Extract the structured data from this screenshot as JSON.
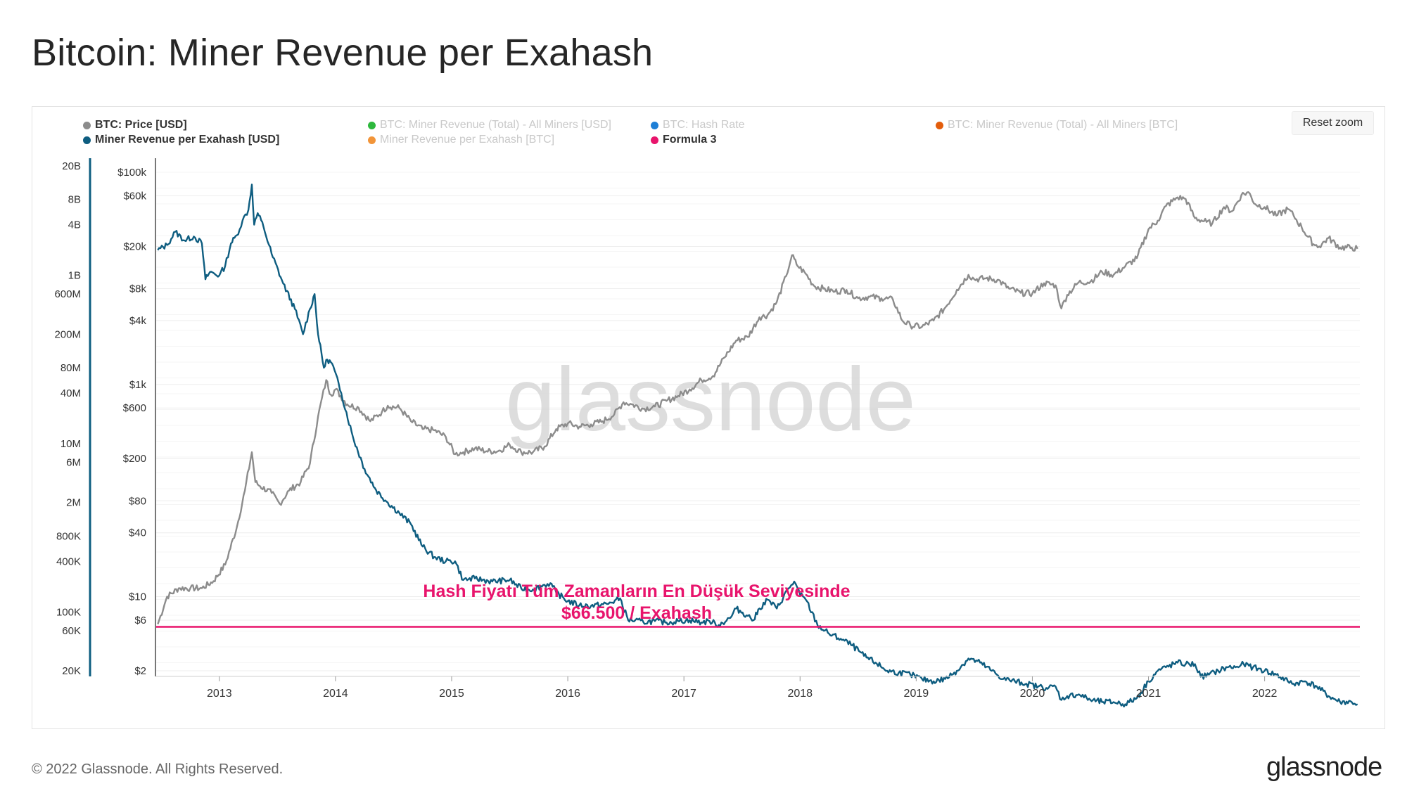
{
  "title": "Bitcoin: Miner Revenue per Exahash",
  "reset_zoom_label": "Reset zoom",
  "watermark": "glassnode",
  "legend": [
    {
      "label": "BTC: Price [USD]",
      "color": "#8c8c8c",
      "active": true
    },
    {
      "label": "BTC: Miner Revenue (Total) - All Miners [USD]",
      "color": "#2db83d",
      "active": false
    },
    {
      "label": "BTC: Hash Rate",
      "color": "#1e7fd6",
      "active": false
    },
    {
      "label": "BTC: Miner Revenue (Total) - All Miners [BTC]",
      "color": "#e35d0c",
      "active": false
    },
    {
      "label": "Miner Revenue per Exahash [USD]",
      "color": "#0e5d80",
      "active": true
    },
    {
      "label": "Miner Revenue per Exahash [BTC]",
      "color": "#f29539",
      "active": false
    },
    {
      "label": "Formula 3",
      "color": "#e8146c",
      "active": true
    }
  ],
  "annotation": {
    "line1": "Hash Fiyatı Tüm Zamanların En Düşük Seviyesinde",
    "line2": "$66.500 / Exahash",
    "color": "#e8146c"
  },
  "chart_data": {
    "type": "line",
    "title": "Bitcoin: Miner Revenue per Exahash",
    "x_ticks": [
      "2013",
      "2014",
      "2015",
      "2016",
      "2017",
      "2018",
      "2019",
      "2020",
      "2021",
      "2022"
    ],
    "x_range": [
      2012.45,
      2022.82
    ],
    "left_axis": {
      "scale": "log",
      "ticks": [
        "20B",
        "8B",
        "4B",
        "1B",
        "600M",
        "200M",
        "80M",
        "40M",
        "10M",
        "6M",
        "2M",
        "800K",
        "400K",
        "100K",
        "60K",
        "20K"
      ],
      "tick_values": [
        20000000000,
        8000000000,
        4000000000,
        1000000000,
        600000000,
        200000000,
        80000000,
        40000000,
        10000000,
        6000000,
        2000000,
        800000,
        400000,
        100000,
        60000,
        20000
      ],
      "color": "#0e5d80"
    },
    "price_axis": {
      "scale": "log",
      "ticks": [
        "$100k",
        "$60k",
        "$20k",
        "$8k",
        "$4k",
        "$1k",
        "$600",
        "$200",
        "$80",
        "$40",
        "$10",
        "$6",
        "$2"
      ],
      "tick_values": [
        100000,
        60000,
        20000,
        8000,
        4000,
        1000,
        600,
        200,
        80,
        40,
        10,
        6,
        2
      ],
      "range": [
        2,
        100000
      ]
    },
    "series": [
      {
        "name": "BTC: Price [USD]",
        "color": "#8c8c8c",
        "unit": "USD",
        "x": [
          2012.47,
          2012.55,
          2012.65,
          2012.75,
          2012.85,
          2012.95,
          2013.05,
          2013.15,
          2013.22,
          2013.28,
          2013.31,
          2013.35,
          2013.45,
          2013.52,
          2013.6,
          2013.7,
          2013.78,
          2013.85,
          2013.92,
          2013.96,
          2014.0,
          2014.1,
          2014.2,
          2014.3,
          2014.4,
          2014.45,
          2014.55,
          2014.65,
          2014.75,
          2014.85,
          2014.95,
          2015.03,
          2015.1,
          2015.2,
          2015.3,
          2015.4,
          2015.5,
          2015.6,
          2015.7,
          2015.8,
          2015.9,
          2016.0,
          2016.1,
          2016.2,
          2016.3,
          2016.4,
          2016.48,
          2016.55,
          2016.65,
          2016.75,
          2016.85,
          2016.95,
          2017.05,
          2017.15,
          2017.25,
          2017.35,
          2017.45,
          2017.55,
          2017.65,
          2017.72,
          2017.8,
          2017.88,
          2017.93,
          2017.97,
          2018.05,
          2018.12,
          2018.2,
          2018.3,
          2018.4,
          2018.5,
          2018.6,
          2018.7,
          2018.8,
          2018.88,
          2018.95,
          2019.05,
          2019.15,
          2019.25,
          2019.35,
          2019.45,
          2019.5,
          2019.6,
          2019.7,
          2019.8,
          2019.9,
          2020.0,
          2020.1,
          2020.2,
          2020.25,
          2020.3,
          2020.4,
          2020.5,
          2020.6,
          2020.7,
          2020.8,
          2020.9,
          2021.0,
          2021.08,
          2021.15,
          2021.25,
          2021.32,
          2021.4,
          2021.5,
          2021.55,
          2021.65,
          2021.72,
          2021.8,
          2021.86,
          2021.92,
          2022.0,
          2022.1,
          2022.2,
          2022.25,
          2022.32,
          2022.42,
          2022.47,
          2022.55,
          2022.65,
          2022.75,
          2022.8
        ],
        "values": [
          5.5,
          10,
          12,
          12,
          12,
          14,
          20,
          45,
          100,
          230,
          120,
          110,
          95,
          75,
          100,
          120,
          180,
          500,
          1100,
          800,
          900,
          650,
          600,
          450,
          550,
          630,
          600,
          450,
          380,
          370,
          320,
          220,
          230,
          250,
          235,
          235,
          270,
          230,
          230,
          260,
          380,
          430,
          400,
          420,
          450,
          520,
          680,
          650,
          590,
          620,
          700,
          780,
          900,
          1100,
          1200,
          1800,
          2600,
          2800,
          4300,
          4500,
          6000,
          10500,
          16500,
          13500,
          11000,
          8500,
          8000,
          7500,
          7800,
          6500,
          6700,
          6500,
          6300,
          4000,
          3600,
          3500,
          4000,
          5300,
          7800,
          10800,
          9800,
          10000,
          9700,
          8000,
          7300,
          7200,
          9000,
          8600,
          5200,
          7000,
          9200,
          9300,
          11500,
          10800,
          13000,
          15500,
          29000,
          35000,
          48000,
          58000,
          56000,
          37000,
          34000,
          33000,
          47000,
          43000,
          61000,
          65000,
          50000,
          47000,
          39000,
          45000,
          39000,
          30000,
          21000,
          20000,
          24000,
          19500,
          19500,
          19000
        ]
      },
      {
        "name": "Miner Revenue per Exahash [USD]",
        "color": "#0e5d80",
        "unit": "USD",
        "x": [
          2012.47,
          2012.55,
          2012.62,
          2012.7,
          2012.78,
          2012.85,
          2012.88,
          2012.92,
          2013.0,
          2013.05,
          2013.1,
          2013.15,
          2013.2,
          2013.25,
          2013.28,
          2013.3,
          2013.33,
          2013.38,
          2013.45,
          2013.55,
          2013.65,
          2013.72,
          2013.78,
          2013.82,
          2013.85,
          2013.9,
          2013.93,
          2013.97,
          2014.05,
          2014.15,
          2014.25,
          2014.35,
          2014.45,
          2014.55,
          2014.65,
          2014.75,
          2014.85,
          2014.95,
          2015.03,
          2015.1,
          2015.2,
          2015.35,
          2015.5,
          2015.6,
          2015.7,
          2015.8,
          2015.85,
          2015.9,
          2016.0,
          2016.1,
          2016.2,
          2016.35,
          2016.45,
          2016.52,
          2016.55,
          2016.65,
          2016.75,
          2016.85,
          2016.95,
          2017.05,
          2017.15,
          2017.22,
          2017.3,
          2017.4,
          2017.45,
          2017.55,
          2017.6,
          2017.65,
          2017.72,
          2017.8,
          2017.9,
          2017.95,
          2018.0,
          2018.05,
          2018.15,
          2018.25,
          2018.35,
          2018.45,
          2018.55,
          2018.65,
          2018.75,
          2018.85,
          2018.95,
          2019.05,
          2019.15,
          2019.25,
          2019.35,
          2019.45,
          2019.55,
          2019.65,
          2019.75,
          2019.85,
          2019.95,
          2020.05,
          2020.12,
          2020.2,
          2020.25,
          2020.3,
          2020.4,
          2020.5,
          2020.6,
          2020.7,
          2020.8,
          2020.9,
          2021.0,
          2021.08,
          2021.15,
          2021.25,
          2021.32,
          2021.4,
          2021.45,
          2021.52,
          2021.6,
          2021.68,
          2021.75,
          2021.82,
          2021.9,
          2022.0,
          2022.1,
          2022.2,
          2022.25,
          2022.35,
          2022.45,
          2022.55,
          2022.65,
          2022.75,
          2022.8
        ],
        "values": [
          2000000000,
          2300000000,
          3300000000,
          2600000000,
          2900000000,
          2400000000,
          900000000,
          1100000000,
          1000000000,
          1300000000,
          2400000000,
          3000000000,
          4500000000,
          6000000000,
          12000000000,
          4000000000,
          5500000000,
          3800000000,
          1800000000,
          800000000,
          400000000,
          200000000,
          400000000,
          600000000,
          200000000,
          80000000,
          100000000,
          90000000,
          40000000,
          12000000,
          5000000,
          2800000,
          2000000,
          1500000,
          1100000,
          600000,
          450000,
          400000,
          400000,
          240000,
          250000,
          230000,
          240000,
          190000,
          185000,
          210000,
          220000,
          170000,
          135000,
          120000,
          118000,
          125000,
          145000,
          80000,
          80000,
          76000,
          78000,
          75000,
          78000,
          80000,
          75000,
          78000,
          70000,
          85000,
          110000,
          90000,
          80000,
          110000,
          140000,
          110000,
          190000,
          230000,
          160000,
          140000,
          70000,
          55000,
          48000,
          40000,
          30000,
          25000,
          20000,
          19000,
          18000,
          16000,
          15000,
          16000,
          20000,
          28000,
          25000,
          20000,
          16000,
          15000,
          14000,
          13000,
          12500,
          13000,
          9000,
          10000,
          10500,
          9000,
          8500,
          8500,
          8000,
          9500,
          15000,
          20000,
          22000,
          25000,
          24000,
          24000,
          17000,
          18000,
          20000,
          22000,
          22000,
          24000,
          22000,
          20000,
          18000,
          15000,
          14000,
          15000,
          13000,
          10000,
          8500,
          8500,
          8000
        ]
      },
      {
        "name": "Formula 3",
        "color": "#e8146c",
        "unit": "USD/EH",
        "x": [
          2012.45,
          2022.82
        ],
        "values": [
          66500,
          66500
        ]
      }
    ]
  },
  "footer": {
    "copyright": "© 2022 Glassnode. All Rights Reserved.",
    "logo": "glassnode"
  }
}
